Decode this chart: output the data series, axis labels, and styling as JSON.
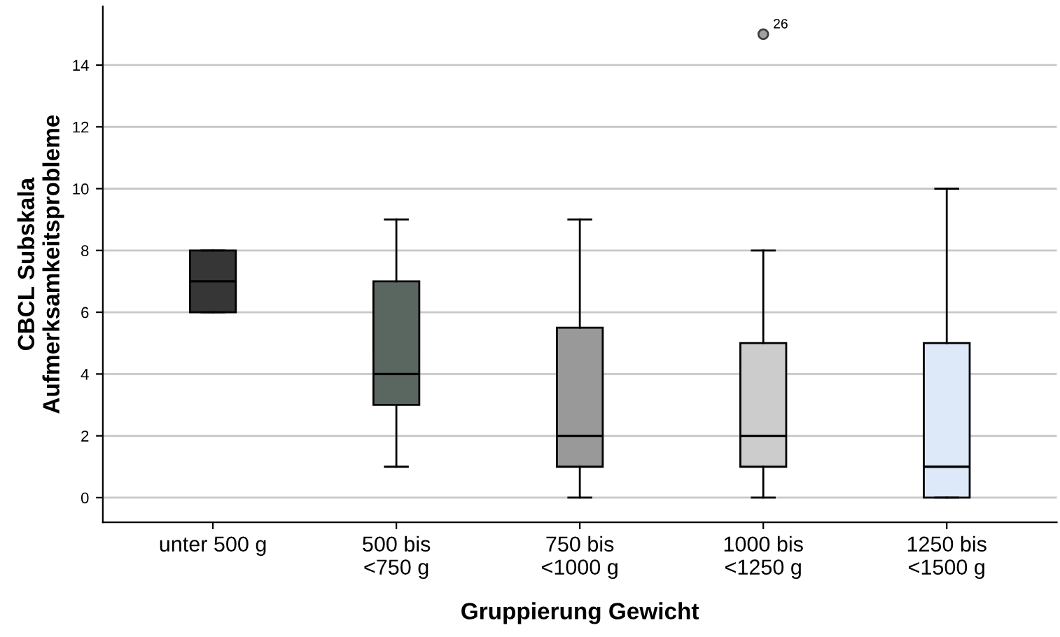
{
  "chart_data": {
    "type": "box",
    "xlabel": "Gruppierung Gewicht",
    "ylabel": "CBCL Subskala\nAufmerksamkeitsprobleme",
    "categories": [
      "unter 500 g",
      "500 bis\n<750 g",
      "750 bis\n<1000 g",
      "1000 bis\n<1250 g",
      "1250 bis\n<1500 g"
    ],
    "boxes": [
      {
        "low": 6,
        "q1": 6,
        "median": 7,
        "q3": 8,
        "high": 8
      },
      {
        "low": 1,
        "q1": 3,
        "median": 4,
        "q3": 7,
        "high": 9
      },
      {
        "low": 0,
        "q1": 1,
        "median": 2,
        "q3": 5.5,
        "high": 9
      },
      {
        "low": 0,
        "q1": 1,
        "median": 2,
        "q3": 5,
        "high": 8,
        "outliers": [
          15
        ]
      },
      {
        "low": 0,
        "q1": 0,
        "median": 1,
        "q3": 5,
        "high": 10
      }
    ],
    "colors": [
      "#363636",
      "#5a6660",
      "#999999",
      "#cccccc",
      "#dde9f8"
    ],
    "annotations": [
      "26"
    ],
    "ylim": [
      -0.8,
      15.9
    ],
    "yticks": [
      0,
      2,
      4,
      6,
      8,
      10,
      12,
      14
    ],
    "grid": "y",
    "legend": false
  }
}
